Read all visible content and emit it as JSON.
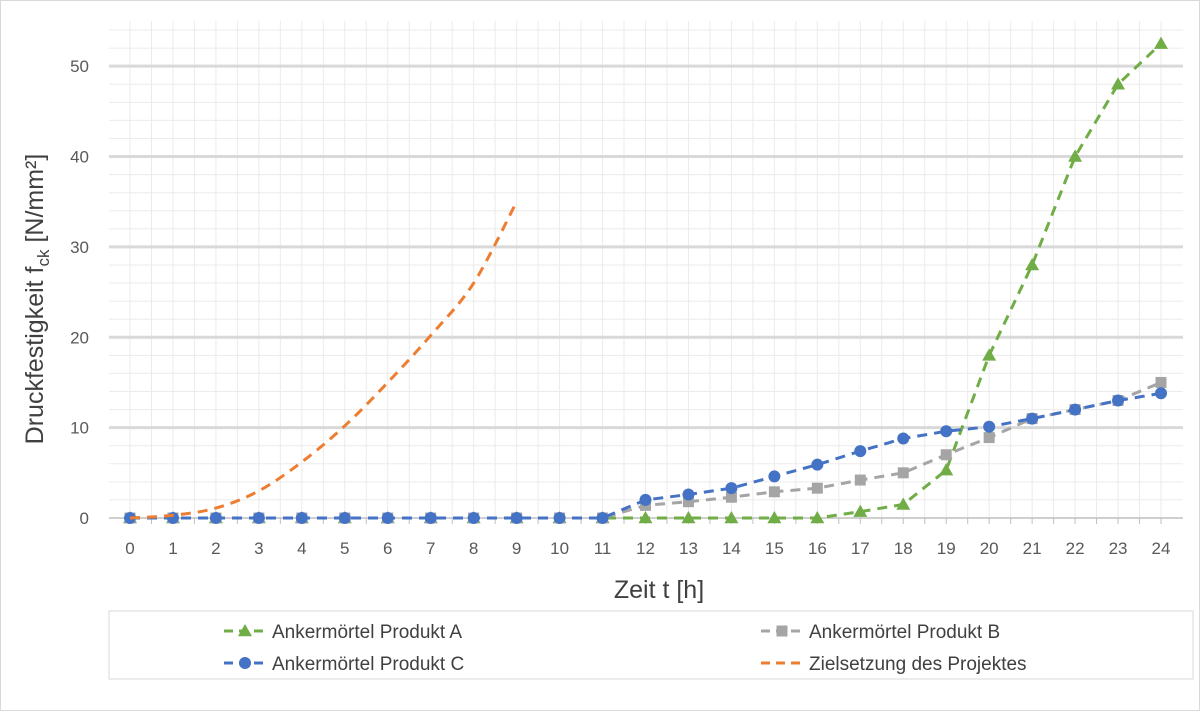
{
  "chart_data": {
    "type": "line",
    "title": "",
    "xlabel": "Zeit t [h]",
    "ylabel": {
      "main": "Druckfestigkeit f",
      "sub": "ck",
      "unit": " [N/mm²]"
    },
    "x": [
      0,
      1,
      2,
      3,
      4,
      5,
      6,
      7,
      8,
      9,
      10,
      11,
      12,
      13,
      14,
      15,
      16,
      17,
      18,
      19,
      20,
      21,
      22,
      23,
      24
    ],
    "xlim": [
      0,
      24
    ],
    "ylim": [
      0,
      55
    ],
    "yticks": [
      0,
      10,
      20,
      30,
      40,
      50
    ],
    "grid": true,
    "legend_position": "bottom",
    "series": [
      {
        "name": "Ankermörtel Produkt A",
        "color": "#70ad47",
        "marker": "triangle",
        "x": [
          0,
          1,
          2,
          3,
          4,
          5,
          6,
          7,
          8,
          9,
          10,
          11,
          12,
          13,
          14,
          15,
          16,
          17,
          18,
          19,
          20,
          21,
          22,
          23,
          24
        ],
        "values": [
          0,
          0,
          0,
          0,
          0,
          0,
          0,
          0,
          0,
          0,
          0,
          0,
          0,
          0,
          0,
          0,
          0,
          0.7,
          1.5,
          5.3,
          18,
          28,
          40,
          48,
          52.5
        ]
      },
      {
        "name": "Ankermörtel Produkt B",
        "color": "#a5a5a5",
        "marker": "square",
        "x": [
          0,
          1,
          2,
          3,
          4,
          5,
          6,
          7,
          8,
          9,
          10,
          11,
          12,
          13,
          14,
          15,
          16,
          17,
          18,
          19,
          20,
          21,
          22,
          23,
          24
        ],
        "values": [
          0,
          0,
          0,
          0,
          0,
          0,
          0,
          0,
          0,
          0,
          0,
          0,
          1.4,
          1.8,
          2.3,
          2.9,
          3.3,
          4.2,
          5.0,
          7.0,
          8.9,
          11.0,
          12.0,
          13.0,
          15.0
        ]
      },
      {
        "name": "Ankermörtel Produkt C",
        "color": "#4472c4",
        "marker": "circle",
        "x": [
          0,
          1,
          2,
          3,
          4,
          5,
          6,
          7,
          8,
          9,
          10,
          11,
          12,
          13,
          14,
          15,
          16,
          17,
          18,
          19,
          20,
          21,
          22,
          23,
          24
        ],
        "values": [
          0,
          0,
          0,
          0,
          0,
          0,
          0,
          0,
          0,
          0,
          0,
          0,
          2.0,
          2.6,
          3.3,
          4.6,
          5.9,
          7.4,
          8.8,
          9.6,
          10.1,
          11.0,
          12.0,
          13.0,
          13.8
        ]
      },
      {
        "name": "Zielsetzung des Projektes",
        "color": "#ed7d31",
        "marker": "none",
        "x": [
          0,
          1,
          2,
          3,
          4,
          5,
          6,
          7,
          8,
          9
        ],
        "values": [
          0,
          0.3,
          1.1,
          3.0,
          6.2,
          10.2,
          15.0,
          20.2,
          26.0,
          35.0
        ]
      }
    ]
  }
}
